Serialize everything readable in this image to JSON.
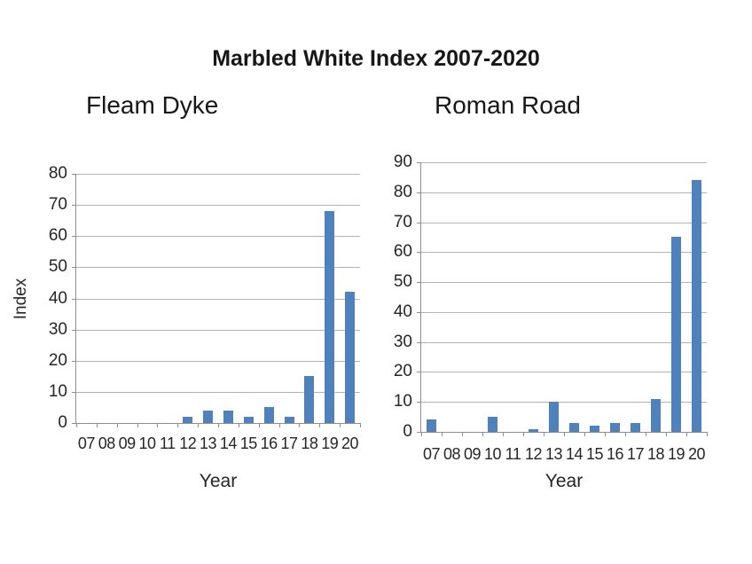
{
  "page_title": "Marbled White Index 2007-2020",
  "colors": {
    "bar": "#4f81bd",
    "gridline": "#b3b3b3",
    "axis": "#8e8e8e",
    "text": "#262626"
  },
  "chart_data": [
    {
      "type": "bar",
      "title": "Fleam Dyke",
      "categories": [
        "07",
        "08",
        "09",
        "10",
        "11",
        "12",
        "13",
        "14",
        "15",
        "16",
        "17",
        "18",
        "19",
        "20"
      ],
      "values": [
        0,
        0,
        0,
        0,
        0,
        2,
        4,
        4,
        2,
        5,
        2,
        15,
        68,
        42
      ],
      "xlabel": "Year",
      "ylabel": "Index",
      "ylim": [
        0,
        80
      ],
      "ytick_step": 10,
      "grid": true,
      "legend": "none",
      "bar_color": "#4f81bd"
    },
    {
      "type": "bar",
      "title": "Roman Road",
      "categories": [
        "07",
        "08",
        "09",
        "10",
        "11",
        "12",
        "13",
        "14",
        "15",
        "16",
        "17",
        "18",
        "19",
        "20"
      ],
      "values": [
        4,
        0,
        0,
        5,
        0,
        1,
        10,
        3,
        2,
        3,
        3,
        11,
        65,
        84
      ],
      "xlabel": "Year",
      "ylabel": "",
      "ylim": [
        0,
        90
      ],
      "ytick_step": 10,
      "grid": true,
      "legend": "none",
      "bar_color": "#4f81bd"
    }
  ]
}
